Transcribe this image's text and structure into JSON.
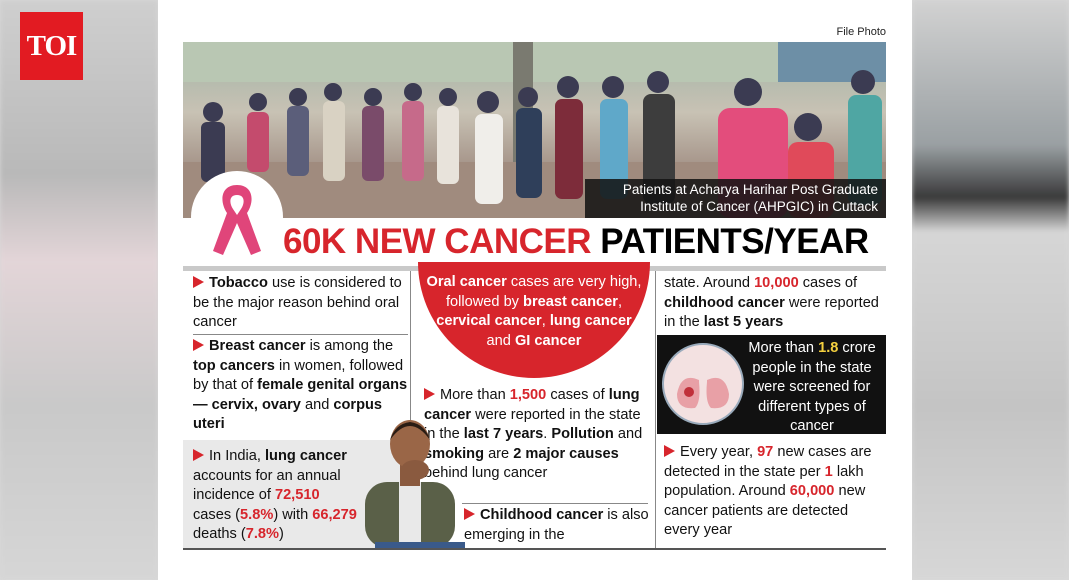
{
  "logo": "TOI",
  "photo_credit": "File Photo",
  "caption": "Patients at Acharya Harihar Post Graduate Institute of Cancer (AHPGIC) in Cuttack",
  "headline": [
    "60K NEW CANCER",
    " PATIENTS/YEAR"
  ],
  "column1": [
    [
      "Tobacco",
      " use is considered to be the major reason behind oral cancer"
    ],
    [
      "Breast cancer",
      " is among the ",
      "top cancers",
      " in women, followed by that of ",
      "female genital organs — cervix, ovary",
      " and ",
      "corpus uteri"
    ],
    [
      "In India, ",
      "lung cancer",
      " accounts for an annual incidence of ",
      "72,510",
      " cases (",
      "5.8%",
      ") with ",
      "66,279",
      " deaths (",
      "7.8%",
      ")"
    ]
  ],
  "column2": [
    [
      "Oral cancer",
      " cases are very high, followed by ",
      "breast cancer",
      ", ",
      "cervical cancer",
      ", ",
      "lung cancer",
      " and ",
      "GI cancer"
    ],
    [
      "More than ",
      "1,500",
      " cases of ",
      "lung cancer",
      " were reported in the state in the ",
      "last 7 years",
      ". ",
      "Pollution",
      " and ",
      "smoking",
      " are ",
      "2 major causes",
      " behind lung cancer"
    ],
    [
      "Childhood cancer",
      " is also emerging in the"
    ]
  ],
  "column3": [
    [
      "state. Around ",
      "10,000",
      " cases of ",
      "childhood cancer",
      " were reported in the ",
      "last 5 years"
    ],
    [
      "More than ",
      "1.8",
      " crore people in the state were screened for different types of cancer"
    ],
    [
      "Every year, ",
      "97",
      " new cases are detected in the state per ",
      "1",
      " lakh population. Around ",
      "60,000",
      " new cancer patients are detected every year"
    ]
  ]
}
